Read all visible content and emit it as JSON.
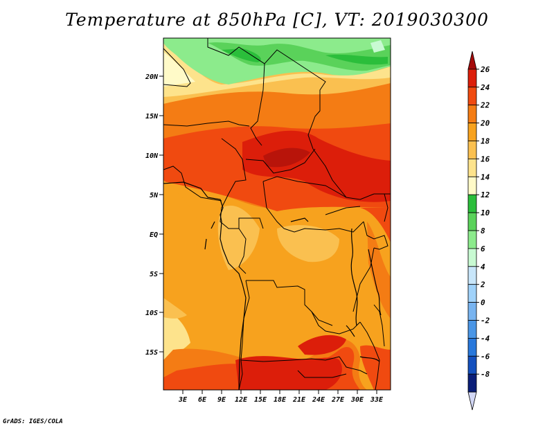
{
  "title": "Temperature at 850hPa [C], VT: 2019030300",
  "credit": "GrADS: IGES/COLA",
  "map": {
    "lat_labels": [
      "20N",
      "15N",
      "10N",
      "5N",
      "EQ",
      "5S",
      "10S",
      "15S"
    ],
    "lon_labels": [
      "3E",
      "6E",
      "9E",
      "12E",
      "15E",
      "18E",
      "21E",
      "24E",
      "27E",
      "30E",
      "33E"
    ]
  },
  "colorbar": {
    "labels": [
      "26",
      "24",
      "22",
      "20",
      "18",
      "16",
      "14",
      "12",
      "10",
      "8",
      "6",
      "4",
      "2",
      "0",
      "-2",
      "-4",
      "-6",
      "-8"
    ],
    "colors": [
      "#a50a0a",
      "#dc1e0a",
      "#f04a10",
      "#f47c14",
      "#f7a21e",
      "#fac050",
      "#fde38c",
      "#fffac8",
      "#2bbe3b",
      "#5ad25a",
      "#8ceb8c",
      "#c8fad2",
      "#c8e6fa",
      "#a0d2fa",
      "#78b4f0",
      "#4a96e6",
      "#2878dc",
      "#1450be",
      "#0a1e78",
      "#d2d7f5"
    ]
  }
}
